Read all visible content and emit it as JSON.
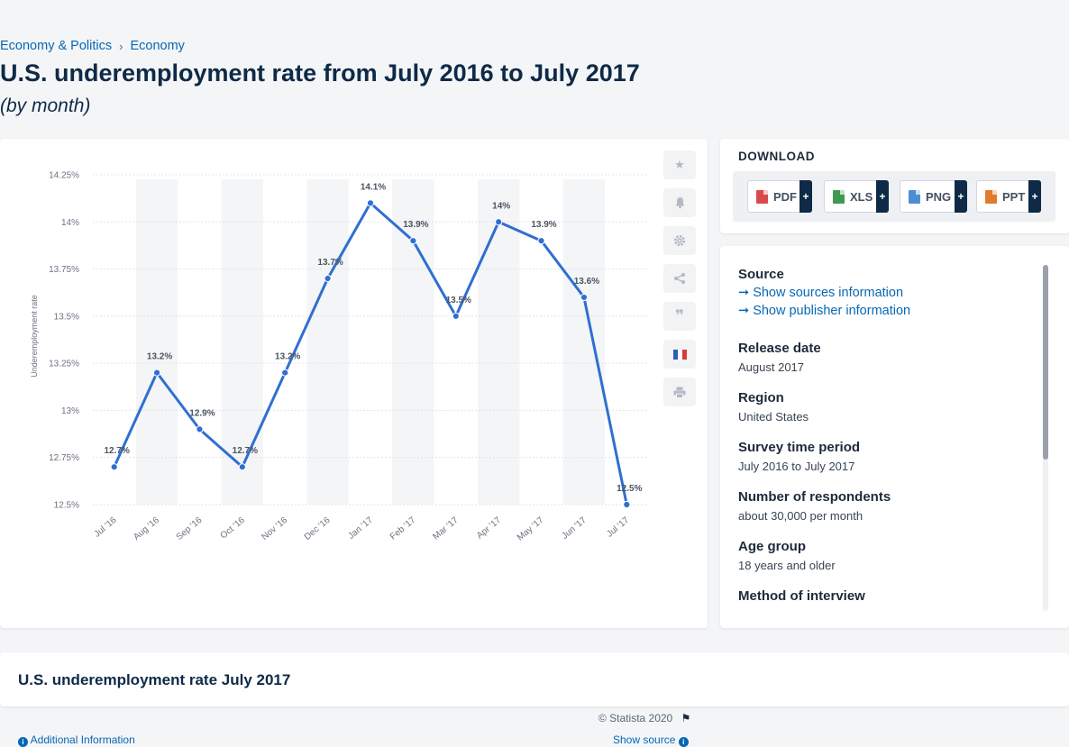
{
  "breadcrumb": {
    "items": [
      "Economy & Politics",
      "Economy"
    ],
    "separator": "›"
  },
  "page": {
    "title": "U.S. underemployment rate from July 2016 to July 2017",
    "subtitle": "(by month)"
  },
  "chart_data": {
    "type": "line",
    "categories": [
      "Jul '16",
      "Aug '16",
      "Sep '16",
      "Oct '16",
      "Nov '16",
      "Dec '16",
      "Jan '17",
      "Feb '17",
      "Mar '17",
      "Apr '17",
      "May '17",
      "Jun '17",
      "Jul '17"
    ],
    "values": [
      12.7,
      13.2,
      12.9,
      12.7,
      13.2,
      13.7,
      14.1,
      13.9,
      13.5,
      14.0,
      13.9,
      13.6,
      12.5
    ],
    "data_labels": [
      "12.7%",
      "13.2%",
      "12.9%",
      "12.7%",
      "13.2%",
      "13.7%",
      "14.1%",
      "13.9%",
      "13.5%",
      "14%",
      "13.9%",
      "13.6%",
      "12.5%"
    ],
    "ylabel": "Underemployment rate",
    "ylim": [
      12.5,
      14.25
    ],
    "yticks": [
      12.5,
      12.75,
      13,
      13.25,
      13.5,
      13.75,
      14,
      14.25
    ],
    "ytick_labels": [
      "12.5%",
      "12.75%",
      "13%",
      "13.25%",
      "13.5%",
      "13.75%",
      "14%",
      "14.25%"
    ],
    "grid": true,
    "legend": "none",
    "line_color": "#2f6fd1",
    "band_color": "#f4f5f7"
  },
  "chart_footer": {
    "credit": "© Statista 2020",
    "additional_info": "Additional Information",
    "show_source": "Show source"
  },
  "download": {
    "title": "DOWNLOAD",
    "formats": [
      {
        "label": "PDF",
        "color": "#d94b4b"
      },
      {
        "label": "XLS",
        "color": "#3d9a4f"
      },
      {
        "label": "PNG",
        "color": "#4a8fd6"
      },
      {
        "label": "PPT",
        "color": "#e07b2e"
      }
    ],
    "plus": "+"
  },
  "info": {
    "source_heading": "Source",
    "show_sources": "Show sources information",
    "show_publisher": "Show publisher information",
    "release_heading": "Release date",
    "release_value": "August 2017",
    "region_heading": "Region",
    "region_value": "United States",
    "survey_heading": "Survey time period",
    "survey_value": "July 2016 to July 2017",
    "respondents_heading": "Number of respondents",
    "respondents_value": "about 30,000 per month",
    "age_heading": "Age group",
    "age_value": "18 years and older",
    "method_heading": "Method of interview"
  },
  "bottom": {
    "title": "U.S. underemployment rate July 2017"
  }
}
